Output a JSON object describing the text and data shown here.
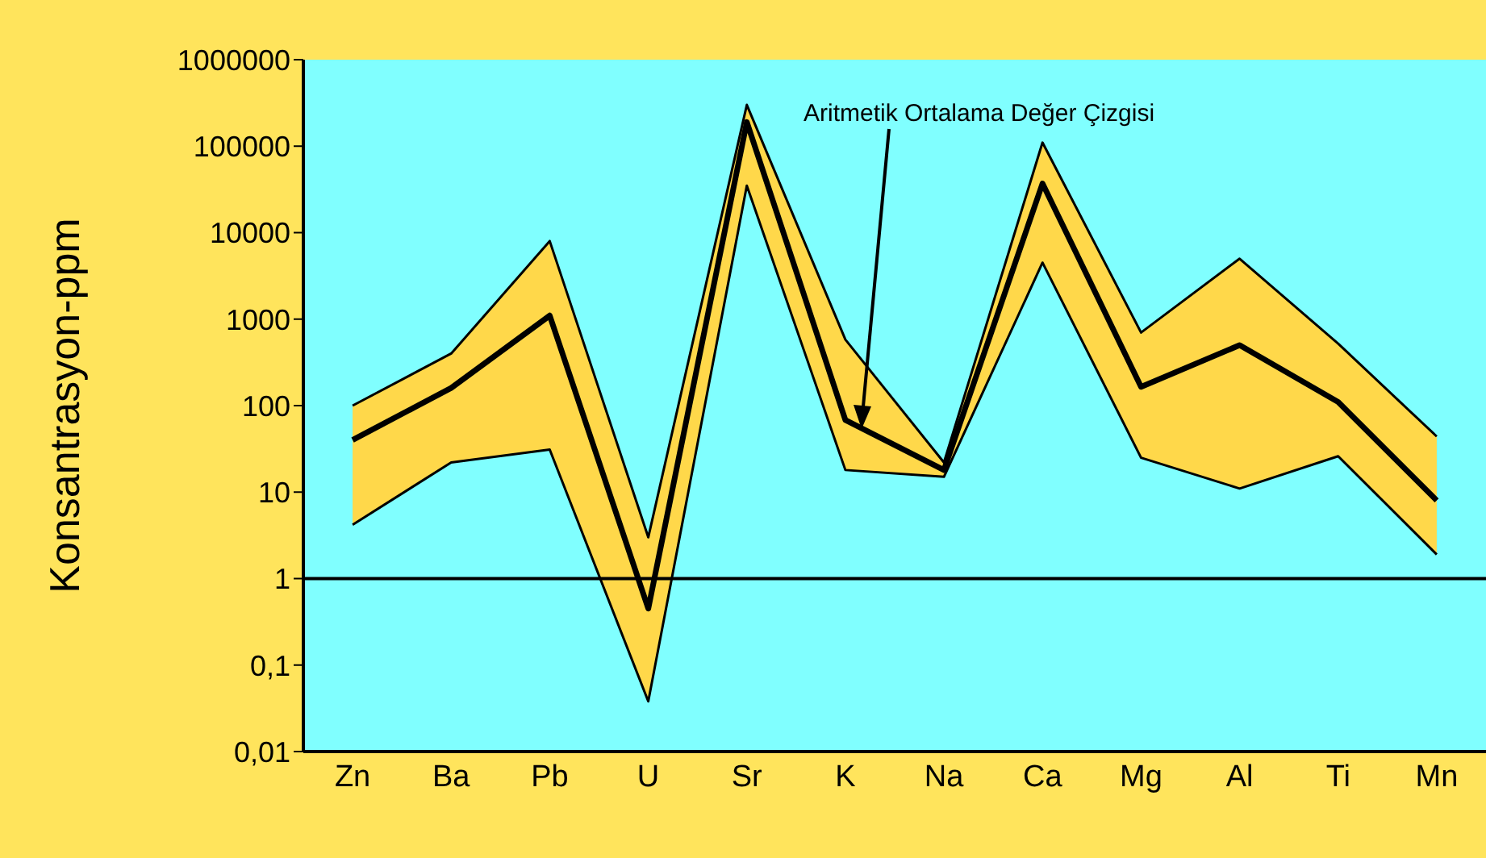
{
  "chart_data": {
    "type": "line",
    "ylabel": "Konsantrasyon-ppm",
    "categories": [
      "Zn",
      "Ba",
      "Pb",
      "U",
      "Sr",
      "K",
      "Na",
      "Ca",
      "Mg",
      "Al",
      "Ti",
      "Mn"
    ],
    "series": [
      {
        "color": "#000000",
        "values": [
          40,
          160,
          1100,
          0.45,
          190000,
          68,
          18,
          37000,
          165,
          500,
          110,
          8
        ],
        "lower": [
          4.2,
          22,
          31,
          0.038,
          35000,
          18,
          15,
          4500,
          25,
          11,
          26,
          1.9
        ],
        "upper": [
          100,
          400,
          8000,
          3,
          300000,
          580,
          22,
          110000,
          700,
          5000,
          520,
          44
        ]
      },
      {
        "color": "#000000",
        "values": [
          100,
          400,
          8000,
          3,
          300000,
          580,
          22,
          110000,
          700,
          5000,
          520,
          44
        ]
      },
      {
        "color": "#000000",
        "values": [
          4.2,
          22,
          31,
          0.038,
          35000,
          18,
          15,
          4500,
          25,
          11,
          26,
          1.9
        ]
      }
    ],
    "log": "y",
    "ylim": [
      0.01,
      1000000
    ],
    "yticks": [
      {
        "value": 0.01,
        "label": "0,01"
      },
      {
        "value": 0.1,
        "label": "0,1"
      },
      1,
      10,
      100,
      1000,
      10000,
      100000,
      1000000
    ],
    "ref_lines": [
      {
        "axis": "y",
        "value": 1,
        "color": "#000000"
      }
    ],
    "annotations": [
      "Aritmetik Ortalama Değer Çizgisi"
    ],
    "marker": "none",
    "line_style": "solid"
  }
}
